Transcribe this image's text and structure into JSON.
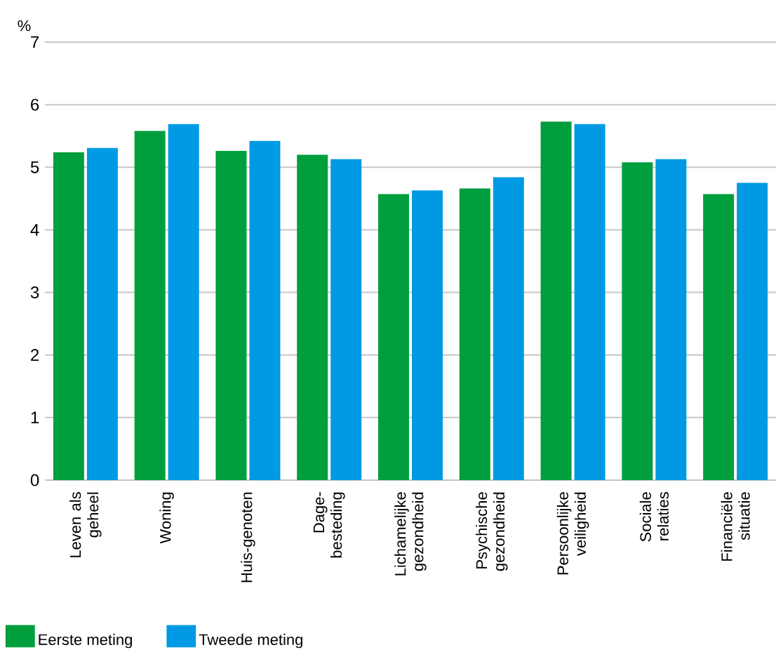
{
  "chart_data": {
    "type": "bar",
    "ylabel": "%",
    "categories": [
      "Leven als geheel",
      "Woning",
      "Huis-genoten",
      "Dage-besteding",
      "Lichamelijke gezondheid",
      "Psychische gezondheid",
      "Persoonlijke veiligheid",
      "Sociale relaties",
      "Financiële situatie"
    ],
    "series": [
      {
        "name": "Eerste meting",
        "color": "#009e3d",
        "values": [
          5.24,
          5.58,
          5.26,
          5.2,
          4.57,
          4.66,
          5.73,
          5.08,
          4.57
        ]
      },
      {
        "name": "Tweede meting",
        "color": "#009ae4",
        "values": [
          5.31,
          5.69,
          5.42,
          5.13,
          4.63,
          4.84,
          5.69,
          5.13,
          4.75
        ]
      }
    ],
    "ylim": [
      0,
      7
    ],
    "yticks": [
      0,
      1,
      2,
      3,
      4,
      5,
      6,
      7
    ],
    "grid": "y",
    "legend": "bottom left"
  }
}
